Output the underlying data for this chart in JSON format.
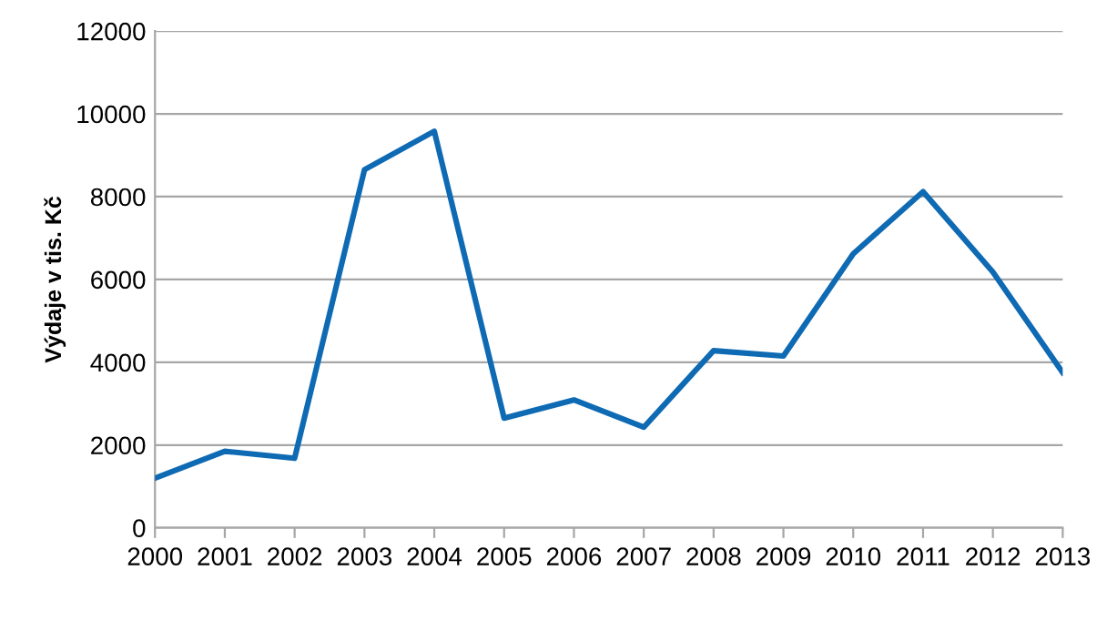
{
  "chart_data": {
    "type": "line",
    "ylabel": "Výdaje v tis. Kč",
    "categories": [
      "2000",
      "2001",
      "2002",
      "2003",
      "2004",
      "2005",
      "2006",
      "2007",
      "2008",
      "2009",
      "2010",
      "2011",
      "2012",
      "2013"
    ],
    "series": [
      {
        "color": "#0f6ab4",
        "values": [
          1200,
          1850,
          1680,
          8650,
          9580,
          2650,
          3090,
          2430,
          4280,
          4150,
          6620,
          8120,
          6180,
          3750
        ]
      }
    ],
    "ylim": [
      0,
      12000
    ],
    "yticks": [
      0,
      2000,
      4000,
      6000,
      8000,
      10000,
      12000
    ],
    "grid": "y",
    "legend": false,
    "marker": "none",
    "line_style": "solid"
  }
}
